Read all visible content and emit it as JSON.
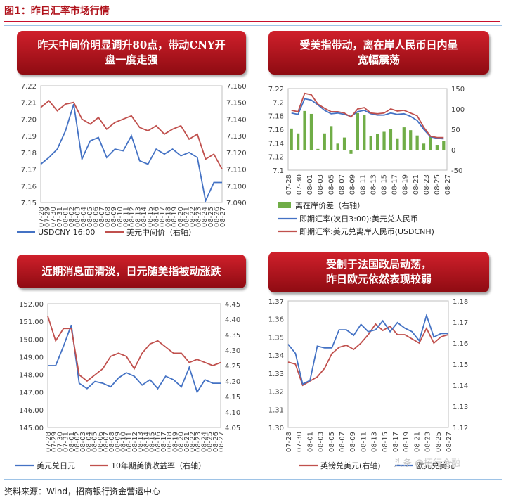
{
  "figure_title": "图1：昨日汇率市场行情",
  "source": "资料来源：Wind，招商银行资金营运中心",
  "watermark": "头条 @招行金融",
  "colors": {
    "blue": "#4472c4",
    "red": "#c0504d",
    "green": "#70ad47",
    "banner_dark": "#8e0b12",
    "banner_light": "#d0202b"
  },
  "chart_data": [
    {
      "type": "line",
      "banner": [
        "昨天中间价明显调升80点，带动CNY开",
        "盘一度走强"
      ],
      "x": [
        "07-28",
        "07-29",
        "07-30",
        "07-31",
        "08-01",
        "08-04",
        "08-05",
        "08-06",
        "08-07",
        "08-08",
        "08-11",
        "08-12",
        "08-13",
        "08-14",
        "08-15",
        "08-18",
        "08-19",
        "08-20",
        "08-21",
        "08-22",
        "08-25",
        "08-26",
        "08-27"
      ],
      "x_ticks": [
        "07-28",
        "07-29",
        "07-30",
        "07-31",
        "08-01",
        "08-02",
        "08-03",
        "08-04",
        "08-05",
        "08-06",
        "08-07",
        "08-08",
        "08-09",
        "08-10",
        "08-11",
        "08-12",
        "08-13",
        "08-14",
        "08-15",
        "08-16",
        "08-17",
        "08-18",
        "08-19",
        "08-20",
        "08-21",
        "08-22",
        "08-23",
        "08-24",
        "08-25",
        "08-26",
        "08-27"
      ],
      "ylim_left": [
        7.15,
        7.22
      ],
      "yticks_left": [
        "7.15",
        "7.16",
        "7.17",
        "7.18",
        "7.19",
        "7.20",
        "7.21",
        "7.22"
      ],
      "ylim_right": [
        7.09,
        7.16
      ],
      "yticks_right": [
        "7.090",
        "7.100",
        "7.110",
        "7.120",
        "7.130",
        "7.140",
        "7.150",
        "7.160"
      ],
      "series": [
        {
          "name": "USDCNY 16:00",
          "axis": "left",
          "color": "#4472c4",
          "values": [
            7.173,
            7.177,
            7.182,
            7.193,
            7.209,
            7.176,
            7.187,
            7.189,
            7.177,
            7.182,
            7.181,
            7.19,
            7.175,
            7.173,
            7.182,
            7.179,
            7.182,
            7.178,
            7.18,
            7.177,
            7.151,
            7.162,
            7.162
          ]
        },
        {
          "name": "美元中间价（右轴）",
          "axis": "right",
          "color": "#c0504d",
          "values": [
            7.147,
            7.151,
            7.145,
            7.149,
            7.15,
            7.14,
            7.137,
            7.141,
            7.134,
            7.138,
            7.14,
            7.142,
            7.135,
            7.133,
            7.136,
            7.131,
            7.134,
            7.136,
            7.128,
            7.131,
            7.116,
            7.119,
            7.11
          ]
        }
      ]
    },
    {
      "type": "line",
      "banner": [
        "受美指带动，离在岸人民币日内呈",
        "宽幅震荡"
      ],
      "x_ticks": [
        "07-28",
        "07-30",
        "08-01",
        "08-03",
        "08-05",
        "08-07",
        "08-09",
        "08-11",
        "08-13",
        "08-15",
        "08-17",
        "08-19",
        "08-21",
        "08-23",
        "08-25",
        "08-27"
      ],
      "ylim_left": [
        7.1,
        7.22
      ],
      "yticks_left": [
        "7.1",
        "7.12",
        "7.14",
        "7.16",
        "7.18",
        "7.2",
        "7.22"
      ],
      "ylim_right": [
        -50,
        150
      ],
      "yticks_right": [
        "-50",
        "0",
        "50",
        "100",
        "150"
      ],
      "bars": {
        "name": "离在岸价差（右轴）",
        "color": "#70ad47",
        "values": [
          52,
          40,
          95,
          88,
          2,
          40,
          58,
          15,
          30,
          -10,
          90,
          85,
          33,
          38,
          44,
          50,
          28,
          55,
          48,
          35,
          15,
          33,
          12,
          22
        ]
      },
      "series": [
        {
          "name": "即期汇率(次日3:00):美元兑人民币",
          "axis": "left",
          "color": "#4472c4",
          "values": [
            7.184,
            7.182,
            7.205,
            7.203,
            7.196,
            7.188,
            7.183,
            7.184,
            7.182,
            7.179,
            7.186,
            7.188,
            7.183,
            7.181,
            7.181,
            7.184,
            7.182,
            7.183,
            7.179,
            7.173,
            7.16,
            7.149,
            7.147,
            7.146
          ]
        },
        {
          "name": "即期汇率:美元兑离岸人民币(USDCNH)",
          "axis": "left",
          "color": "#c0504d",
          "values": [
            7.188,
            7.186,
            7.213,
            7.211,
            7.197,
            7.191,
            7.186,
            7.186,
            7.184,
            7.178,
            7.19,
            7.192,
            7.184,
            7.183,
            7.184,
            7.19,
            7.187,
            7.188,
            7.184,
            7.18,
            7.163,
            7.15,
            7.148,
            7.148
          ]
        }
      ]
    },
    {
      "type": "line",
      "banner": [
        "近期消息面清淡，日元随美指被动涨跌"
      ],
      "x_ticks": [
        "07-28",
        "07-29",
        "07-30",
        "07-31",
        "08-01",
        "08-02",
        "08-03",
        "08-04",
        "08-05",
        "08-06",
        "08-07",
        "08-08",
        "08-09",
        "08-10",
        "08-11",
        "08-12",
        "08-13",
        "08-14",
        "08-15",
        "08-16",
        "08-17",
        "08-18",
        "08-19",
        "08-20",
        "08-21",
        "08-22",
        "08-23",
        "08-24",
        "08-25",
        "08-26",
        "08-27"
      ],
      "ylim_left": [
        145,
        152
      ],
      "yticks_left": [
        "145.00",
        "146.00",
        "147.00",
        "148.00",
        "149.00",
        "150.00",
        "151.00",
        "152.00"
      ],
      "ylim_right": [
        4.05,
        4.45
      ],
      "yticks_right": [
        "4.05",
        "4.10",
        "4.15",
        "4.20",
        "4.25",
        "4.30",
        "4.35",
        "4.40",
        "4.45"
      ],
      "series": [
        {
          "name": "美元兑日元",
          "axis": "left",
          "color": "#4472c4",
          "values": [
            148.5,
            148.5,
            149.6,
            150.8,
            147.5,
            147.2,
            147.6,
            147.5,
            147.3,
            147.8,
            148.1,
            147.9,
            147.4,
            147.7,
            147.2,
            147.9,
            147.7,
            147.3,
            148.4,
            147.0,
            147.7,
            147.5,
            147.5
          ]
        },
        {
          "name": "10年期美债收益率（右轴）",
          "axis": "right",
          "color": "#c0504d",
          "values": [
            4.41,
            4.33,
            4.37,
            4.37,
            4.22,
            4.2,
            4.22,
            4.24,
            4.28,
            4.29,
            4.28,
            4.24,
            4.29,
            4.32,
            4.33,
            4.31,
            4.29,
            4.29,
            4.26,
            4.27,
            4.26,
            4.25,
            4.26
          ]
        }
      ]
    },
    {
      "type": "line",
      "banner": [
        "受制于法国政局动荡，",
        "昨日欧元依然表现较弱"
      ],
      "x_ticks": [
        "07-28",
        "07-30",
        "08-01",
        "08-03",
        "08-05",
        "08-07",
        "08-09",
        "08-11",
        "08-13",
        "08-15",
        "08-17",
        "08-19",
        "08-21",
        "08-23",
        "08-25",
        "08-27"
      ],
      "ylim_left": [
        1.3,
        1.37
      ],
      "yticks_left": [
        "1.30",
        "1.31",
        "1.32",
        "1.33",
        "1.34",
        "1.35",
        "1.36",
        "1.37"
      ],
      "ylim_right": [
        1.12,
        1.18
      ],
      "yticks_right": [
        "1.12",
        "1.13",
        "1.14",
        "1.15",
        "1.16",
        "1.17",
        "1.18"
      ],
      "series": [
        {
          "name": "英镑兑美元(右轴)",
          "axis": "right",
          "color": "#c0504d",
          "values": [
            1.151,
            1.15,
            1.14,
            1.142,
            1.144,
            1.148,
            1.155,
            1.158,
            1.159,
            1.157,
            1.16,
            1.164,
            1.169,
            1.166,
            1.168,
            1.164,
            1.164,
            1.162,
            1.16,
            1.167,
            1.16,
            1.163,
            1.164
          ]
        },
        {
          "name": "欧元兑美元",
          "axis": "left",
          "color": "#4472c4",
          "values": [
            1.346,
            1.341,
            1.324,
            1.326,
            1.345,
            1.344,
            1.344,
            1.354,
            1.354,
            1.351,
            1.357,
            1.353,
            1.354,
            1.359,
            1.353,
            1.358,
            1.355,
            1.353,
            1.348,
            1.362,
            1.35,
            1.352,
            1.352
          ]
        }
      ]
    }
  ]
}
